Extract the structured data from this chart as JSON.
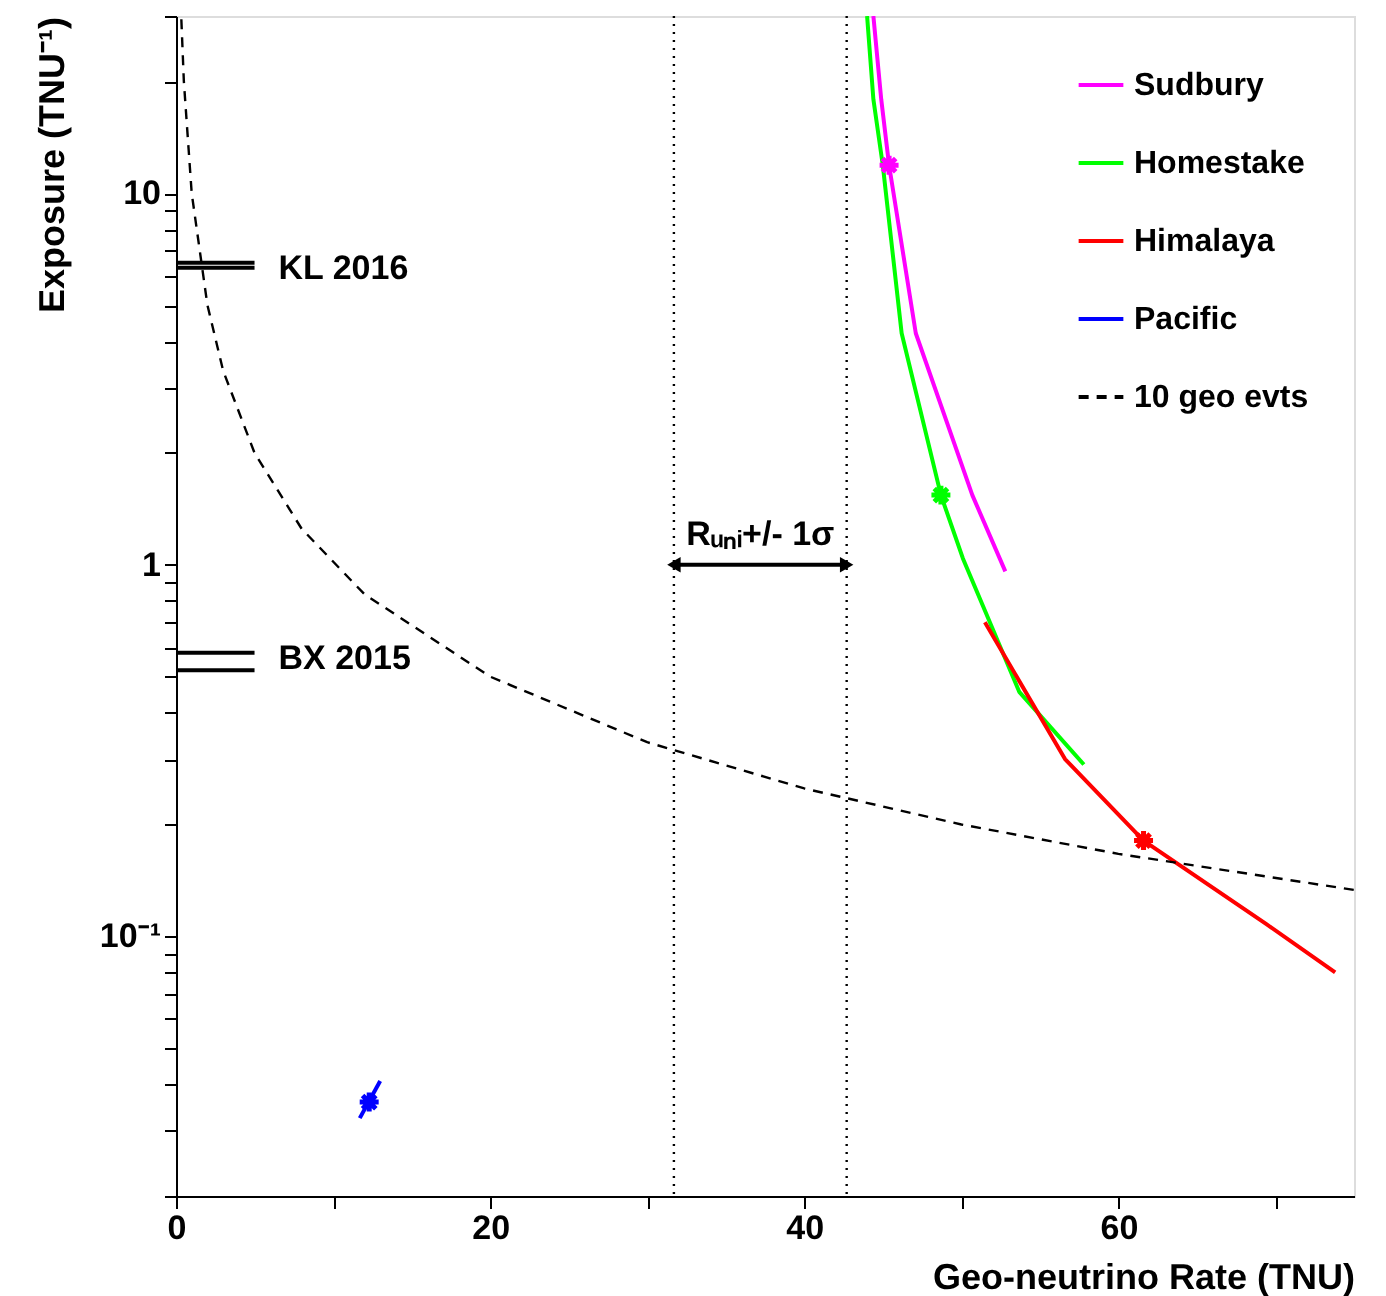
{
  "chart_data": {
    "type": "line",
    "xlabel": "Geo-neutrino Rate (TNU)",
    "ylabel": "Exposure (TNU⁻¹)",
    "xlim": [
      0,
      75
    ],
    "ylim": [
      0.02,
      30
    ],
    "log": "y",
    "grid": false,
    "legend": "top right",
    "xticks": [
      0,
      {
        "value": 10,
        "label": null
      },
      20,
      {
        "value": 30,
        "label": null
      },
      40,
      {
        "value": 50,
        "label": null
      },
      60,
      {
        "value": 70,
        "label": null
      }
    ],
    "yticks": [
      {
        "value": 0.02,
        "label": null
      },
      {
        "value": 0.03,
        "label": null
      },
      {
        "value": 0.04,
        "label": null
      },
      {
        "value": 0.05,
        "label": null
      },
      {
        "value": 0.06,
        "label": null
      },
      {
        "value": 0.07,
        "label": null
      },
      {
        "value": 0.08,
        "label": null
      },
      {
        "value": 0.09,
        "label": null
      },
      {
        "value": 0.1,
        "label": "10⁻¹"
      },
      {
        "value": 0.2,
        "label": null
      },
      {
        "value": 0.3,
        "label": null
      },
      {
        "value": 0.4,
        "label": null
      },
      {
        "value": 0.5,
        "label": null
      },
      {
        "value": 0.6,
        "label": null
      },
      {
        "value": 0.7,
        "label": null
      },
      {
        "value": 0.8,
        "label": null
      },
      {
        "value": 0.9,
        "label": null
      },
      1,
      {
        "value": 2,
        "label": null
      },
      {
        "value": 3,
        "label": null
      },
      {
        "value": 4,
        "label": null
      },
      {
        "value": 5,
        "label": null
      },
      {
        "value": 6,
        "label": null
      },
      {
        "value": 7,
        "label": null
      },
      {
        "value": 8,
        "label": null
      },
      {
        "value": 9,
        "label": null
      },
      10,
      {
        "value": 20,
        "label": null
      },
      {
        "value": 30,
        "label": null
      }
    ],
    "series": [
      {
        "name": "Sudbury",
        "color": "#ff00ff",
        "marker": "none",
        "line_style": "solid",
        "x": [
          44.4,
          44.9,
          45.4,
          47.1,
          50.7,
          52.8
        ],
        "values": [
          30,
          17.9,
          11.9,
          4.2,
          1.54,
          0.96
        ]
      },
      {
        "name": "Homestake",
        "color": "#00ff00",
        "marker": "none",
        "line_style": "solid",
        "x": [
          44.0,
          44.4,
          45.0,
          46.2,
          48.7,
          50.1,
          53.7,
          57.8
        ],
        "values": [
          30,
          17.9,
          11.9,
          4.2,
          1.54,
          1.04,
          0.454,
          0.29
        ]
      },
      {
        "name": "Himalaya",
        "color": "#ff0000",
        "marker": "none",
        "line_style": "solid",
        "x": [
          51.5,
          56.6,
          61.6,
          69.4,
          73.8
        ],
        "values": [
          0.7,
          0.3,
          0.181,
          0.108,
          0.08
        ]
      },
      {
        "name": "Pacific",
        "color": "#0000ff",
        "marker": "none",
        "line_style": "solid",
        "x": [
          11.7,
          13.0
        ],
        "values": [
          0.0324,
          0.0408
        ]
      },
      {
        "name": "10 geo evts",
        "color": "#000000",
        "marker": "none",
        "line_style": "dashed",
        "x": [
          0.34,
          0.5,
          1,
          2,
          3,
          5,
          8,
          12,
          20,
          30,
          40,
          50,
          60,
          75
        ],
        "values": [
          29.4,
          20,
          10,
          5,
          3.33,
          2,
          1.25,
          0.833,
          0.5,
          0.333,
          0.25,
          0.2,
          0.1667,
          0.1333
        ]
      },
      {
        "type": "scatter",
        "color": "#ff00ff",
        "marker": "cross",
        "x": [
          45.4
        ],
        "values": [
          11.9
        ]
      },
      {
        "type": "scatter",
        "color": "#00ff00",
        "marker": "cross",
        "x": [
          48.7
        ],
        "values": [
          1.54
        ]
      },
      {
        "type": "scatter",
        "color": "#ff0000",
        "marker": "cross",
        "x": [
          61.6
        ],
        "values": [
          0.181
        ]
      },
      {
        "type": "scatter",
        "color": "#0000ff",
        "marker": "cross",
        "x": [
          12.3
        ],
        "values": [
          0.0358
        ]
      },
      {
        "name": "KL 2016",
        "color": "#000000",
        "marker": "none",
        "line_style": "solid",
        "x": [
          0,
          5.0
        ],
        "values": [
          6.5,
          6.5
        ]
      },
      {
        "color": "#000000",
        "marker": "none",
        "line_style": "solid",
        "x": [
          0,
          5.0
        ],
        "values": [
          6.3,
          6.3
        ]
      },
      {
        "name": "BX 2015",
        "color": "#000000",
        "marker": "none",
        "line_style": "solid",
        "x": [
          0,
          5.0
        ],
        "values": [
          0.58,
          0.58
        ]
      },
      {
        "color": "#000000",
        "marker": "none",
        "line_style": "solid",
        "x": [
          0,
          5.0
        ],
        "values": [
          0.52,
          0.52
        ]
      },
      {
        "name": "Rᵤₙᵢ+/- 1σ",
        "color": "#000000",
        "marker": "triangle",
        "line_style": "solid",
        "x": [
          31.7,
          42.7
        ],
        "values": [
          1.0,
          1.0
        ]
      }
    ],
    "ref_lines": [
      {
        "axis": "x",
        "value": 31.7,
        "color": "#000000",
        "line_style": "dotted"
      },
      {
        "axis": "x",
        "value": 42.7,
        "color": "#000000",
        "line_style": "dotted"
      }
    ]
  }
}
